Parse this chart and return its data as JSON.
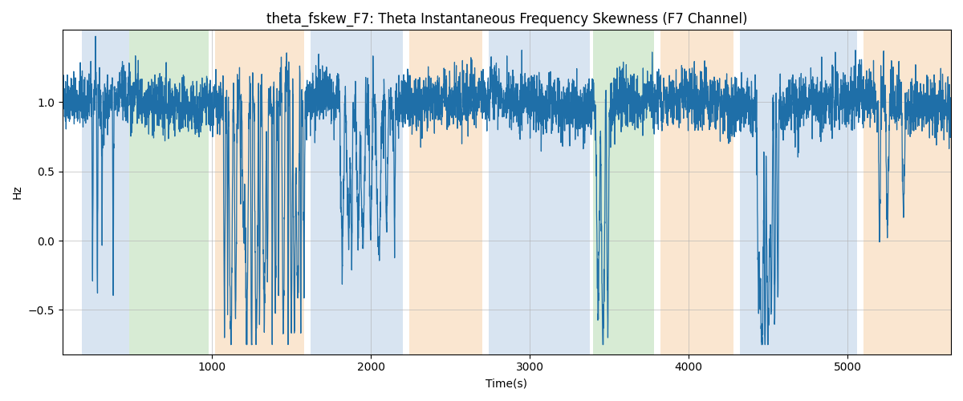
{
  "title": "theta_fskew_F7: Theta Instantaneous Frequency Skewness (F7 Channel)",
  "xlabel": "Time(s)",
  "ylabel": "Hz",
  "xlim": [
    60,
    5650
  ],
  "ylim": [
    -0.82,
    1.52
  ],
  "yticks": [
    -0.5,
    0.0,
    0.5,
    1.0
  ],
  "xticks": [
    1000,
    2000,
    3000,
    4000,
    5000
  ],
  "bg_regions": [
    {
      "xmin": 180,
      "xmax": 480,
      "color": "#aac4e0",
      "alpha": 0.45
    },
    {
      "xmin": 480,
      "xmax": 980,
      "color": "#a8d4a0",
      "alpha": 0.45
    },
    {
      "xmin": 1020,
      "xmax": 1580,
      "color": "#f5c898",
      "alpha": 0.45
    },
    {
      "xmin": 1620,
      "xmax": 2200,
      "color": "#aac4e0",
      "alpha": 0.45
    },
    {
      "xmin": 2240,
      "xmax": 2700,
      "color": "#f5c898",
      "alpha": 0.45
    },
    {
      "xmin": 2740,
      "xmax": 3380,
      "color": "#aac4e0",
      "alpha": 0.45
    },
    {
      "xmin": 3400,
      "xmax": 3780,
      "color": "#a8d4a0",
      "alpha": 0.45
    },
    {
      "xmin": 3820,
      "xmax": 4280,
      "color": "#f5c898",
      "alpha": 0.45
    },
    {
      "xmin": 4320,
      "xmax": 5060,
      "color": "#aac4e0",
      "alpha": 0.45
    },
    {
      "xmin": 5100,
      "xmax": 5650,
      "color": "#f5c898",
      "alpha": 0.45
    }
  ],
  "line_color": "#1f6fa8",
  "line_width": 0.9,
  "grid_color": "#b0b0b0",
  "grid_alpha": 0.6,
  "title_fontsize": 12,
  "figsize": [
    12,
    5
  ],
  "dpi": 100,
  "seed": 42,
  "n_points": 5600
}
